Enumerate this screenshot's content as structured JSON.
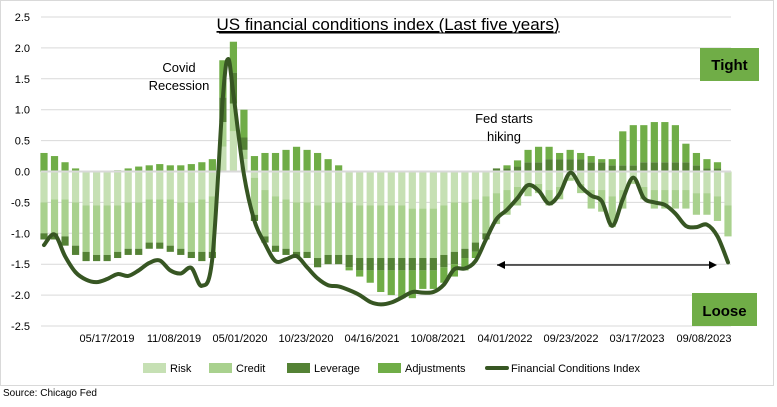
{
  "chart_data": {
    "type": "bar",
    "stacked": true,
    "title": "US financial conditions index (Last five years)",
    "xlabel": "",
    "ylabel": "",
    "ylim": [
      -2.5,
      2.5
    ],
    "yticks": [
      "2.5",
      "2.0",
      "1.5",
      "1.0",
      "0.5",
      "0.0",
      "-0.5",
      "-1.0",
      "-1.5",
      "-2.0",
      "-2.5"
    ],
    "xtick_labels": [
      "05/17/2019",
      "11/08/2019",
      "05/01/2020",
      "10/23/2020",
      "04/16/2021",
      "10/08/2021",
      "04/01/2022",
      "09/23/2022",
      "03/17/2023",
      "09/08/2023"
    ],
    "grid": "horizontal",
    "legend_position": "bottom",
    "x": [
      "2018-11-23",
      "2018-12-21",
      "2019-01-18",
      "2019-02-15",
      "2019-03-15",
      "2019-04-12",
      "2019-05-10",
      "2019-06-07",
      "2019-07-05",
      "2019-08-02",
      "2019-08-30",
      "2019-09-27",
      "2019-10-25",
      "2019-11-22",
      "2019-12-20",
      "2020-01-17",
      "2020-02-14",
      "2020-03-13",
      "2020-04-10",
      "2020-05-08",
      "2020-06-05",
      "2020-07-03",
      "2020-07-31",
      "2020-08-28",
      "2020-09-25",
      "2020-10-23",
      "2020-11-20",
      "2020-12-18",
      "2021-01-15",
      "2021-02-12",
      "2021-03-12",
      "2021-04-09",
      "2021-05-07",
      "2021-06-04",
      "2021-07-02",
      "2021-07-30",
      "2021-08-27",
      "2021-09-24",
      "2021-10-22",
      "2021-11-19",
      "2021-12-17",
      "2022-01-14",
      "2022-02-11",
      "2022-03-11",
      "2022-04-08",
      "2022-05-06",
      "2022-06-03",
      "2022-07-01",
      "2022-07-29",
      "2022-08-26",
      "2022-09-23",
      "2022-10-21",
      "2022-11-18",
      "2022-12-16",
      "2023-01-13",
      "2023-02-10",
      "2023-03-10",
      "2023-04-07",
      "2023-05-05",
      "2023-06-02",
      "2023-06-30",
      "2023-07-28",
      "2023-08-25",
      "2023-09-22",
      "2023-10-20",
      "2023-11-17"
    ],
    "series": [
      {
        "name": "Risk",
        "kind": "bar",
        "color": "#c6e0b4",
        "values": [
          -0.5,
          -0.45,
          -0.45,
          -0.5,
          -0.55,
          -0.55,
          -0.55,
          -0.55,
          -0.5,
          -0.5,
          -0.45,
          -0.45,
          -0.45,
          -0.5,
          -0.5,
          -0.45,
          -0.4,
          0.4,
          0.65,
          0.2,
          -0.1,
          -0.3,
          -0.4,
          -0.45,
          -0.5,
          -0.5,
          -0.55,
          -0.5,
          -0.5,
          -0.5,
          -0.55,
          -0.55,
          -0.55,
          -0.55,
          -0.55,
          -0.6,
          -0.6,
          -0.6,
          -0.55,
          -0.5,
          -0.5,
          -0.45,
          -0.4,
          -0.35,
          -0.3,
          -0.25,
          -0.2,
          -0.2,
          -0.3,
          -0.25,
          -0.1,
          -0.2,
          -0.3,
          -0.3,
          -0.4,
          -0.3,
          -0.15,
          -0.25,
          -0.3,
          -0.3,
          -0.3,
          -0.3,
          -0.35,
          -0.35,
          -0.4,
          -0.55
        ]
      },
      {
        "name": "Credit",
        "kind": "bar",
        "color": "#a9d18e",
        "values": [
          -0.5,
          -0.55,
          -0.6,
          -0.7,
          -0.75,
          -0.8,
          -0.8,
          -0.75,
          -0.75,
          -0.75,
          -0.7,
          -0.7,
          -0.75,
          -0.75,
          -0.8,
          -0.85,
          -0.9,
          0.4,
          0.45,
          0.15,
          -0.6,
          -0.75,
          -0.8,
          -0.8,
          -0.8,
          -0.8,
          -0.85,
          -0.85,
          -0.85,
          -0.85,
          -0.85,
          -0.85,
          -0.85,
          -0.85,
          -0.85,
          -0.8,
          -0.8,
          -0.8,
          -0.8,
          -0.8,
          -0.75,
          -0.7,
          -0.6,
          -0.5,
          -0.4,
          -0.3,
          -0.2,
          -0.15,
          -0.25,
          -0.2,
          -0.05,
          -0.15,
          -0.3,
          -0.35,
          -0.5,
          -0.3,
          -0.05,
          -0.2,
          -0.3,
          -0.3,
          -0.3,
          -0.3,
          -0.35,
          -0.35,
          -0.4,
          -0.5
        ]
      },
      {
        "name": "Leverage",
        "kind": "bar",
        "color": "#548235",
        "values": [
          -0.1,
          -0.1,
          -0.15,
          -0.15,
          -0.15,
          -0.1,
          -0.1,
          -0.1,
          -0.1,
          -0.1,
          -0.1,
          -0.1,
          -0.1,
          -0.1,
          -0.1,
          -0.15,
          -0.1,
          0.4,
          0.5,
          0.2,
          -0.1,
          -0.1,
          -0.1,
          -0.1,
          -0.1,
          -0.1,
          -0.15,
          -0.15,
          -0.15,
          -0.2,
          -0.2,
          -0.2,
          -0.2,
          -0.2,
          -0.2,
          -0.2,
          -0.2,
          -0.2,
          -0.2,
          -0.2,
          -0.15,
          -0.15,
          -0.1,
          0.05,
          0.05,
          0.08,
          0.15,
          0.15,
          0.2,
          0.2,
          0.2,
          0.2,
          0.15,
          0.15,
          0.1,
          0.1,
          0.1,
          0.15,
          0.15,
          0.15,
          0.15,
          0.15,
          0.1,
          0.05,
          0.05,
          0.0
        ]
      },
      {
        "name": "Adjustments",
        "kind": "bar",
        "color": "#70ad47",
        "values": [
          0.3,
          0.25,
          0.15,
          0.05,
          0.0,
          0.0,
          0.0,
          0.02,
          0.05,
          0.08,
          0.1,
          0.12,
          0.1,
          0.1,
          0.12,
          0.15,
          0.2,
          0.6,
          0.5,
          0.45,
          0.25,
          0.3,
          0.3,
          0.35,
          0.4,
          0.35,
          0.3,
          0.2,
          0.1,
          -0.05,
          -0.1,
          -0.2,
          -0.35,
          -0.4,
          -0.45,
          -0.45,
          -0.3,
          -0.3,
          -0.25,
          -0.2,
          -0.2,
          -0.1,
          0.0,
          0.0,
          0.05,
          0.1,
          0.2,
          0.25,
          0.2,
          0.1,
          0.15,
          0.1,
          0.1,
          0.05,
          0.1,
          0.55,
          0.65,
          0.6,
          0.65,
          0.65,
          0.6,
          0.3,
          0.2,
          0.15,
          0.1,
          0.0
        ]
      },
      {
        "name": "Financial Conditions Index",
        "kind": "line",
        "color": "#375623",
        "points": [
          [
            "2018-11-23",
            -1.19
          ],
          [
            "2018-12-21",
            -1.02
          ],
          [
            "2019-01-18",
            -1.37
          ],
          [
            "2019-02-15",
            -1.63
          ],
          [
            "2019-03-15",
            -1.75
          ],
          [
            "2019-04-12",
            -1.79
          ],
          [
            "2019-05-10",
            -1.74
          ],
          [
            "2019-06-07",
            -1.66
          ],
          [
            "2019-07-05",
            -1.69
          ],
          [
            "2019-08-02",
            -1.6
          ],
          [
            "2019-08-30",
            -1.48
          ],
          [
            "2019-09-27",
            -1.44
          ],
          [
            "2019-10-25",
            -1.6
          ],
          [
            "2019-11-22",
            -1.65
          ],
          [
            "2019-12-20",
            -1.56
          ],
          [
            "2020-01-17",
            -1.85
          ],
          [
            "2020-02-14",
            -1.4
          ],
          [
            "2020-03-13",
            1.2
          ],
          [
            "2020-03-27",
            1.82
          ],
          [
            "2020-04-10",
            1.25
          ],
          [
            "2020-05-08",
            -0.05
          ],
          [
            "2020-06-05",
            -0.8
          ],
          [
            "2020-07-03",
            -1.17
          ],
          [
            "2020-07-31",
            -1.45
          ],
          [
            "2020-08-28",
            -1.42
          ],
          [
            "2020-09-25",
            -1.37
          ],
          [
            "2020-10-23",
            -1.55
          ],
          [
            "2020-11-20",
            -1.73
          ],
          [
            "2020-12-18",
            -1.84
          ],
          [
            "2021-01-15",
            -1.86
          ],
          [
            "2021-02-12",
            -1.92
          ],
          [
            "2021-03-12",
            -2.0
          ],
          [
            "2021-04-09",
            -2.11
          ],
          [
            "2021-05-07",
            -2.15
          ],
          [
            "2021-06-04",
            -2.12
          ],
          [
            "2021-07-02",
            -2.04
          ],
          [
            "2021-07-30",
            -1.95
          ],
          [
            "2021-08-27",
            -1.96
          ],
          [
            "2021-09-24",
            -1.95
          ],
          [
            "2021-10-22",
            -1.83
          ],
          [
            "2021-11-19",
            -1.58
          ],
          [
            "2021-12-17",
            -1.57
          ],
          [
            "2022-01-14",
            -1.45
          ],
          [
            "2022-02-11",
            -1.1
          ],
          [
            "2022-03-11",
            -0.77
          ],
          [
            "2022-04-08",
            -0.62
          ],
          [
            "2022-05-06",
            -0.43
          ],
          [
            "2022-06-03",
            -0.22
          ],
          [
            "2022-07-01",
            -0.31
          ],
          [
            "2022-07-29",
            -0.52
          ],
          [
            "2022-08-26",
            -0.36
          ],
          [
            "2022-09-23",
            -0.02
          ],
          [
            "2022-10-21",
            -0.24
          ],
          [
            "2022-11-18",
            -0.39
          ],
          [
            "2022-12-16",
            -0.48
          ],
          [
            "2023-01-13",
            -0.88
          ],
          [
            "2023-02-10",
            -0.45
          ],
          [
            "2023-03-10",
            -0.1
          ],
          [
            "2023-04-07",
            -0.43
          ],
          [
            "2023-05-05",
            -0.5
          ],
          [
            "2023-06-02",
            -0.54
          ],
          [
            "2023-06-30",
            -0.68
          ],
          [
            "2023-07-28",
            -0.88
          ],
          [
            "2023-08-25",
            -0.9
          ],
          [
            "2023-09-22",
            -0.86
          ],
          [
            "2023-10-20",
            -1.05
          ],
          [
            "2023-11-17",
            -1.47
          ]
        ]
      }
    ],
    "annotations": {
      "covid": [
        "Covid",
        "Recession"
      ],
      "fed": [
        "Fed starts",
        "hiking"
      ],
      "tight": "Tight",
      "loose": "Loose"
    },
    "label_box_color": "#70ad47"
  },
  "source": "Source: Chicago Fed"
}
